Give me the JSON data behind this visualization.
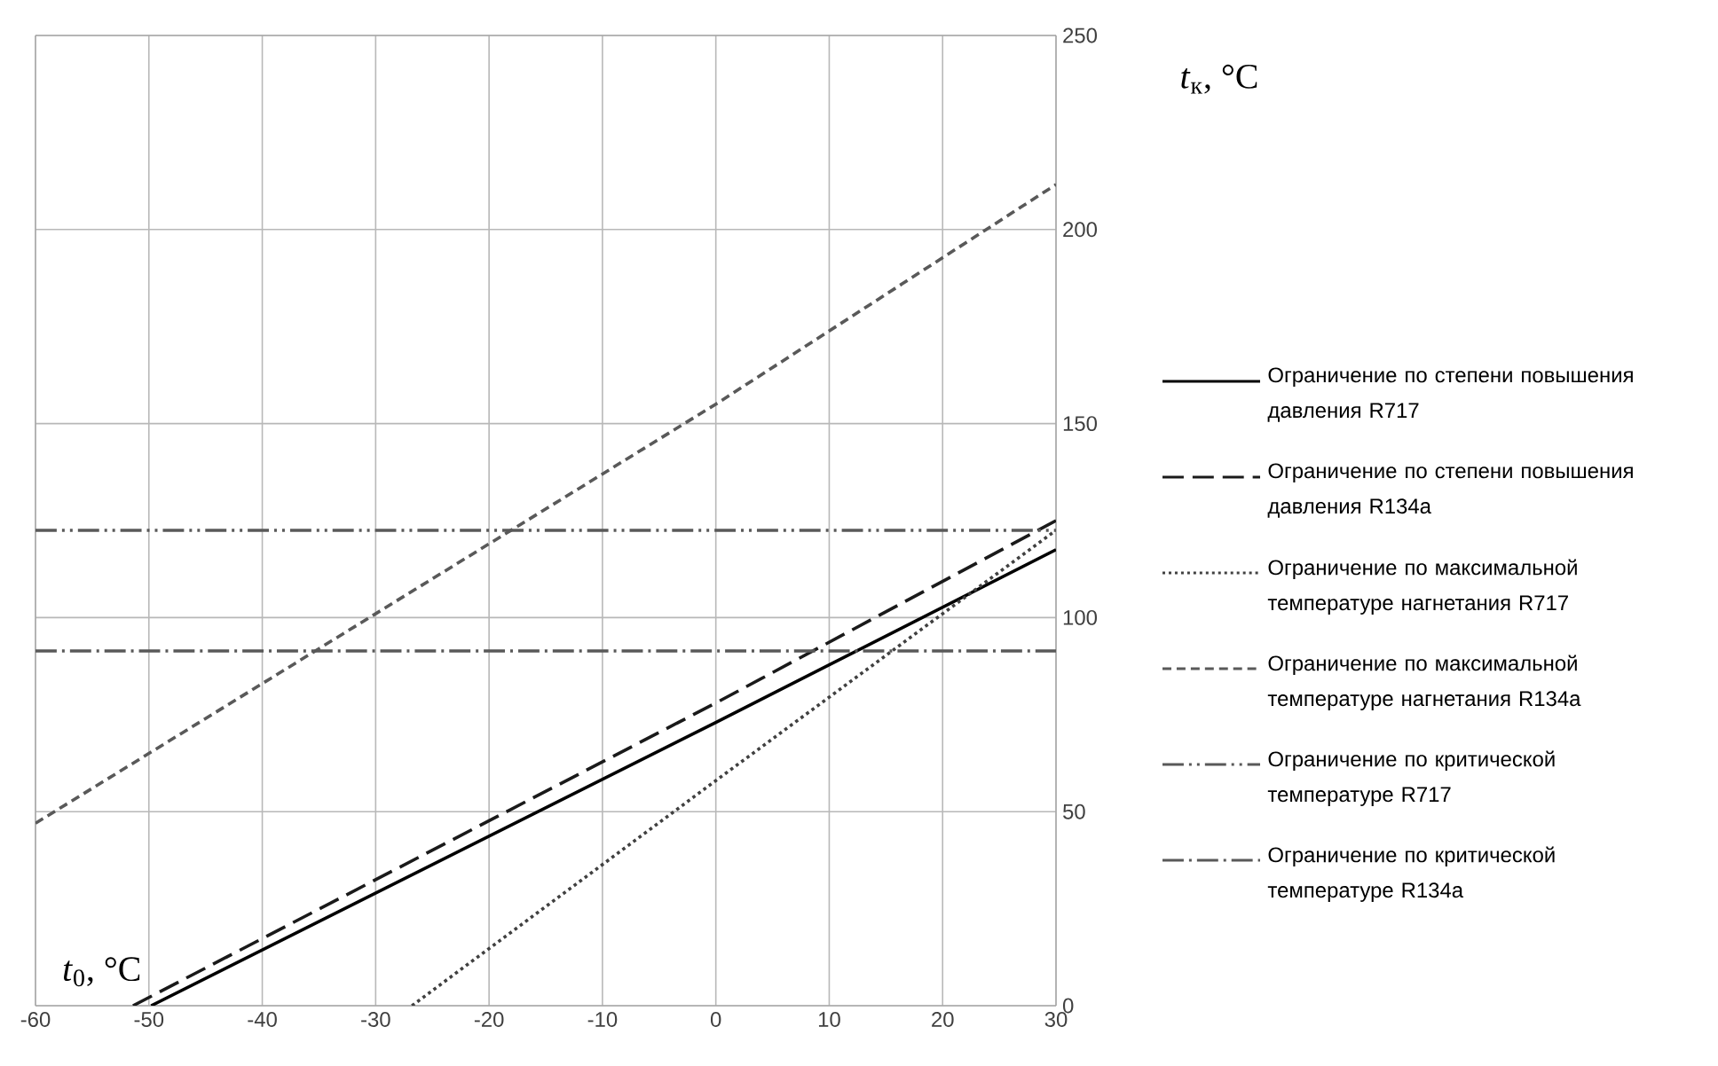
{
  "chart_data": {
    "type": "line",
    "xlabel": "*t*$_{0}$, °C",
    "ylabel": "*t*$_{к}$, °C",
    "xlim": [
      -60,
      30
    ],
    "xticks": [
      -60,
      -50,
      -40,
      -30,
      -20,
      -10,
      0,
      10,
      20,
      30
    ],
    "ylim": [
      0,
      250
    ],
    "yticks": [
      0,
      50,
      100,
      150,
      200,
      250
    ],
    "grid": true,
    "legend": "right",
    "series": [
      {
        "name": "Ограничение по степени повышения давления R717",
        "color": "#000000",
        "line_style": "solid",
        "x": [
          -49.8,
          0,
          30
        ],
        "values": [
          0,
          73,
          117.5
        ]
      },
      {
        "name": "Ограничение по степени повышения давления R134a",
        "color": "#1a1a1a",
        "line_style": "longdashed",
        "x": [
          -51.4,
          0,
          30
        ],
        "values": [
          0,
          78,
          125
        ]
      },
      {
        "name": "Ограничение по максимальной температуре нагнетания R717",
        "color": "#404040",
        "line_style": "dotted",
        "x": [
          -26.8,
          0,
          30
        ],
        "values": [
          0,
          58,
          122.5
        ]
      },
      {
        "name": "Ограничение по максимальной температуре нагнетания R134a",
        "color": "#595959",
        "line_style": "dashed",
        "x": [
          -60,
          0,
          30
        ],
        "values": [
          47,
          155,
          211.6
        ]
      },
      {
        "name": "Ограничение по критической температуре R717",
        "color": "#595959",
        "line_style": "dashdotdotted",
        "x": [
          -60,
          30
        ],
        "values": [
          122.5,
          122.5
        ]
      },
      {
        "name": "Ограничение по критической температуре R134a",
        "color": "#595959",
        "line_style": "dashdotted",
        "x": [
          -60,
          30
        ],
        "values": [
          91.4,
          91.4
        ]
      }
    ]
  }
}
